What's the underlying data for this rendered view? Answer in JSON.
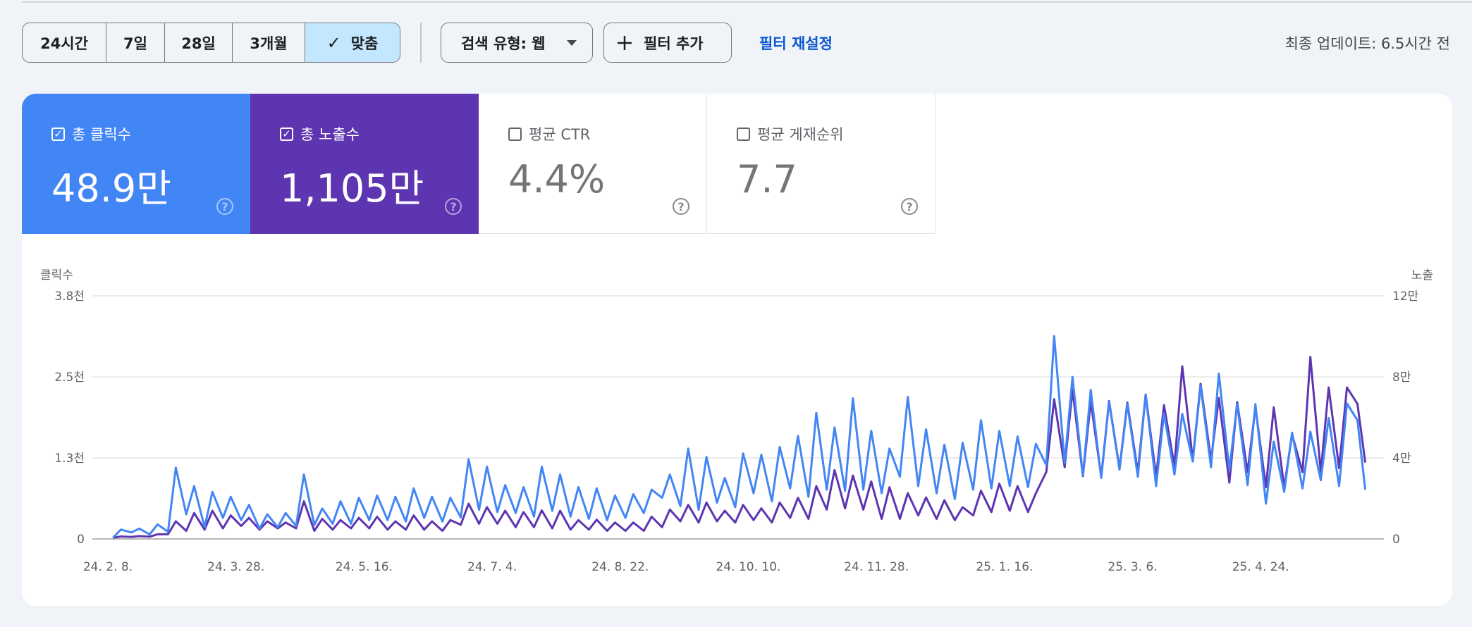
{
  "toolbar": {
    "date_ranges": [
      "24시간",
      "7일",
      "28일",
      "3개월",
      "맞춤"
    ],
    "selected_range": "맞춤",
    "check_icon": "✓",
    "search_type_label": "검색 유형: 웹",
    "add_filter_label": "필터 추가",
    "reset_filter_label": "필터 재설정",
    "last_updated": "최종 업데이트: 6.5시간 전"
  },
  "metrics": [
    {
      "label": "총 클릭수",
      "value": "48.9만",
      "checked": true,
      "color": "#4285f4"
    },
    {
      "label": "총 노출수",
      "value": "1,105만",
      "checked": true,
      "color": "#5e35b1"
    },
    {
      "label": "평균 CTR",
      "value": "4.4%",
      "checked": false
    },
    {
      "label": "평균 게재순위",
      "value": "7.7",
      "checked": false
    }
  ],
  "help_icon": "?",
  "chart_data": {
    "type": "line",
    "left_axis_title": "클릭수",
    "right_axis_title": "노출",
    "xlim": [
      "2024-02-08",
      "2025-06-05"
    ],
    "x_ticks": [
      {
        "date": "2024-02-08",
        "label": "24. 2. 8."
      },
      {
        "date": "2024-03-28",
        "label": "24. 3. 28."
      },
      {
        "date": "2024-05-16",
        "label": "24. 5. 16."
      },
      {
        "date": "2024-07-04",
        "label": "24. 7. 4."
      },
      {
        "date": "2024-08-22",
        "label": "24. 8. 22."
      },
      {
        "date": "2024-10-10",
        "label": "24. 10. 10."
      },
      {
        "date": "2024-11-28",
        "label": "24. 11. 28."
      },
      {
        "date": "2025-01-16",
        "label": "25. 1. 16."
      },
      {
        "date": "2025-03-06",
        "label": "25. 3. 6."
      },
      {
        "date": "2025-04-24",
        "label": "25. 4. 24."
      }
    ],
    "left_ticks": [
      {
        "value": 0,
        "label": "0"
      },
      {
        "value": 1250,
        "label": "1.3천"
      },
      {
        "value": 2500,
        "label": "2.5천"
      },
      {
        "value": 3750,
        "label": "3.8천"
      }
    ],
    "right_ticks": [
      {
        "value": 0,
        "label": "0"
      },
      {
        "value": 40000,
        "label": "4만"
      },
      {
        "value": 80000,
        "label": "8만"
      },
      {
        "value": 120000,
        "label": "12만"
      }
    ],
    "ylim_left": [
      0,
      3750
    ],
    "ylim_right": [
      0,
      120000
    ],
    "grid": true,
    "series": [
      {
        "name": "클릭수",
        "axis": "left",
        "color": "#4285f4"
      },
      {
        "name": "노출",
        "axis": "right",
        "color": "#5e35b1"
      }
    ],
    "points_columns": [
      "date",
      "clicks",
      "impressions"
    ],
    "points": [
      [
        "2024-02-10",
        20,
        600
      ],
      [
        "2024-02-13",
        145,
        1200
      ],
      [
        "2024-02-17",
        100,
        1000
      ],
      [
        "2024-02-20",
        160,
        1400
      ],
      [
        "2024-02-24",
        70,
        1100
      ],
      [
        "2024-02-27",
        225,
        2300
      ],
      [
        "2024-03-02",
        110,
        2300
      ],
      [
        "2024-03-05",
        1100,
        8700
      ],
      [
        "2024-03-09",
        380,
        4000
      ],
      [
        "2024-03-12",
        815,
        12800
      ],
      [
        "2024-03-16",
        180,
        4600
      ],
      [
        "2024-03-19",
        725,
        13900
      ],
      [
        "2024-03-23",
        325,
        5200
      ],
      [
        "2024-03-26",
        650,
        11600
      ],
      [
        "2024-03-30",
        290,
        6400
      ],
      [
        "2024-04-02",
        525,
        10400
      ],
      [
        "2024-04-06",
        160,
        4600
      ],
      [
        "2024-04-09",
        380,
        8700
      ],
      [
        "2024-04-13",
        180,
        5200
      ],
      [
        "2024-04-16",
        400,
        8100
      ],
      [
        "2024-04-20",
        200,
        5200
      ],
      [
        "2024-04-23",
        995,
        18600
      ],
      [
        "2024-04-27",
        215,
        4000
      ],
      [
        "2024-04-30",
        470,
        9900
      ],
      [
        "2024-05-04",
        235,
        4600
      ],
      [
        "2024-05-07",
        580,
        9300
      ],
      [
        "2024-05-11",
        235,
        5200
      ],
      [
        "2024-05-14",
        635,
        10400
      ],
      [
        "2024-05-18",
        290,
        5200
      ],
      [
        "2024-05-21",
        670,
        11000
      ],
      [
        "2024-05-25",
        290,
        4600
      ],
      [
        "2024-05-28",
        650,
        8700
      ],
      [
        "2024-06-01",
        270,
        4600
      ],
      [
        "2024-06-04",
        780,
        11600
      ],
      [
        "2024-06-08",
        325,
        4600
      ],
      [
        "2024-06-11",
        650,
        8700
      ],
      [
        "2024-06-15",
        270,
        4000
      ],
      [
        "2024-06-18",
        635,
        9300
      ],
      [
        "2024-06-22",
        330,
        7000
      ],
      [
        "2024-06-25",
        1230,
        17400
      ],
      [
        "2024-06-29",
        450,
        7500
      ],
      [
        "2024-07-02",
        1115,
        15700
      ],
      [
        "2024-07-06",
        415,
        7500
      ],
      [
        "2024-07-09",
        830,
        13900
      ],
      [
        "2024-07-13",
        400,
        5800
      ],
      [
        "2024-07-16",
        800,
        13300
      ],
      [
        "2024-07-20",
        345,
        5800
      ],
      [
        "2024-07-23",
        1115,
        14100
      ],
      [
        "2024-07-27",
        435,
        5200
      ],
      [
        "2024-07-30",
        995,
        13900
      ],
      [
        "2024-08-03",
        345,
        4600
      ],
      [
        "2024-08-06",
        800,
        9300
      ],
      [
        "2024-08-10",
        310,
        4600
      ],
      [
        "2024-08-13",
        780,
        9500
      ],
      [
        "2024-08-17",
        290,
        4000
      ],
      [
        "2024-08-20",
        670,
        8100
      ],
      [
        "2024-08-24",
        325,
        4000
      ],
      [
        "2024-08-27",
        690,
        8100
      ],
      [
        "2024-08-31",
        400,
        4000
      ],
      [
        "2024-09-03",
        760,
        11000
      ],
      [
        "2024-09-07",
        635,
        5800
      ],
      [
        "2024-09-10",
        995,
        14500
      ],
      [
        "2024-09-14",
        505,
        8700
      ],
      [
        "2024-09-17",
        1395,
        16800
      ],
      [
        "2024-09-21",
        450,
        8100
      ],
      [
        "2024-09-24",
        1265,
        18000
      ],
      [
        "2024-09-28",
        560,
        8700
      ],
      [
        "2024-10-01",
        940,
        13900
      ],
      [
        "2024-10-05",
        490,
        8100
      ],
      [
        "2024-10-08",
        1320,
        16800
      ],
      [
        "2024-10-12",
        705,
        9300
      ],
      [
        "2024-10-15",
        1300,
        15100
      ],
      [
        "2024-10-19",
        580,
        8100
      ],
      [
        "2024-10-22",
        1420,
        18000
      ],
      [
        "2024-10-26",
        780,
        10400
      ],
      [
        "2024-10-29",
        1590,
        20300
      ],
      [
        "2024-11-02",
        650,
        9900
      ],
      [
        "2024-11-05",
        1945,
        26100
      ],
      [
        "2024-11-09",
        760,
        14500
      ],
      [
        "2024-11-12",
        1720,
        34000
      ],
      [
        "2024-11-16",
        740,
        15100
      ],
      [
        "2024-11-19",
        2170,
        31300
      ],
      [
        "2024-11-23",
        760,
        14500
      ],
      [
        "2024-11-26",
        1670,
        28400
      ],
      [
        "2024-11-30",
        705,
        9900
      ],
      [
        "2024-12-03",
        1395,
        25500
      ],
      [
        "2024-12-07",
        960,
        9900
      ],
      [
        "2024-12-10",
        2190,
        22600
      ],
      [
        "2024-12-14",
        815,
        11600
      ],
      [
        "2024-12-17",
        1690,
        20500
      ],
      [
        "2024-12-21",
        705,
        9900
      ],
      [
        "2024-12-24",
        1455,
        19100
      ],
      [
        "2024-12-28",
        615,
        9300
      ],
      [
        "2024-12-31",
        1485,
        15700
      ],
      [
        "2025-01-04",
        760,
        11600
      ],
      [
        "2025-01-07",
        1830,
        23800
      ],
      [
        "2025-01-11",
        780,
        13300
      ],
      [
        "2025-01-14",
        1665,
        27300
      ],
      [
        "2025-01-18",
        815,
        13900
      ],
      [
        "2025-01-21",
        1580,
        26100
      ],
      [
        "2025-01-25",
        800,
        13300
      ],
      [
        "2025-01-28",
        1465,
        22600
      ],
      [
        "2025-02-01",
        1140,
        33100
      ],
      [
        "2025-02-04",
        3130,
        69000
      ],
      [
        "2025-02-08",
        1175,
        35400
      ],
      [
        "2025-02-11",
        2500,
        73700
      ],
      [
        "2025-02-15",
        980,
        31000
      ],
      [
        "2025-02-18",
        2300,
        67900
      ],
      [
        "2025-02-22",
        940,
        30700
      ],
      [
        "2025-02-25",
        2120,
        68100
      ],
      [
        "2025-03-01",
        1070,
        34800
      ],
      [
        "2025-03-04",
        2080,
        67300
      ],
      [
        "2025-03-08",
        960,
        33000
      ],
      [
        "2025-03-11",
        2225,
        71300
      ],
      [
        "2025-03-15",
        815,
        30700
      ],
      [
        "2025-03-18",
        1935,
        66100
      ],
      [
        "2025-03-22",
        995,
        36000
      ],
      [
        "2025-03-25",
        1930,
        85300
      ],
      [
        "2025-03-29",
        1195,
        39000
      ],
      [
        "2025-04-01",
        2365,
        76600
      ],
      [
        "2025-04-05",
        1105,
        39000
      ],
      [
        "2025-04-08",
        2550,
        69600
      ],
      [
        "2025-04-12",
        1070,
        27800
      ],
      [
        "2025-04-15",
        2080,
        67500
      ],
      [
        "2025-04-19",
        830,
        33000
      ],
      [
        "2025-04-22",
        2080,
        65000
      ],
      [
        "2025-04-26",
        545,
        25500
      ],
      [
        "2025-04-29",
        1500,
        65000
      ],
      [
        "2025-05-03",
        725,
        25500
      ],
      [
        "2025-05-06",
        1640,
        51600
      ],
      [
        "2025-05-10",
        780,
        33000
      ],
      [
        "2025-05-13",
        1655,
        89900
      ],
      [
        "2025-05-17",
        905,
        33000
      ],
      [
        "2025-05-20",
        1865,
        74800
      ],
      [
        "2025-05-24",
        815,
        35000
      ],
      [
        "2025-05-27",
        2090,
        74800
      ],
      [
        "2025-05-31",
        1830,
        66700
      ],
      [
        "2025-06-03",
        760,
        37700
      ]
    ]
  }
}
